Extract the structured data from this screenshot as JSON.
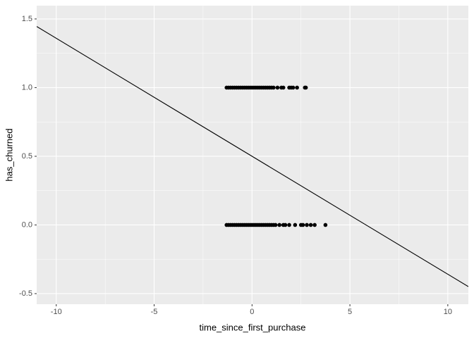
{
  "chart_data": {
    "type": "scatter",
    "xlabel": "time_since_first_purchase",
    "ylabel": "has_churned",
    "xlim": [
      -11,
      11.05
    ],
    "ylim": [
      -0.577,
      1.597
    ],
    "xticks": [
      -10,
      -5,
      0,
      5,
      10
    ],
    "yticks": [
      -0.5,
      {
        "value": 0,
        "label": "0.0"
      },
      0.5,
      {
        "value": 1,
        "label": "1.0"
      },
      1.5
    ],
    "xminor": [
      -7.5,
      -2.5,
      2.5,
      7.5
    ],
    "yminor": [
      -0.25,
      0.25,
      0.75,
      1.25
    ],
    "grid": true,
    "background": "#ebebeb",
    "point_color": "#000000",
    "points": {
      "x": [
        -1.3,
        -1.2,
        -1.1,
        -1,
        -0.9,
        -0.8,
        -0.7,
        -0.6,
        -0.5,
        -0.4,
        -0.3,
        -0.2,
        -0.1,
        0,
        0.1,
        0.2,
        0.3,
        0.4,
        0.5,
        0.6,
        0.7,
        0.8,
        0.9,
        1,
        1.1,
        1.3,
        1.5,
        1.6,
        1.9,
        2,
        2.1,
        2.3,
        2.7,
        2.75,
        -1.3,
        -1.2,
        -1.1,
        -1,
        -0.9,
        -0.8,
        -0.7,
        -0.6,
        -0.5,
        -0.4,
        -0.3,
        -0.2,
        -0.1,
        0,
        0.1,
        0.2,
        0.3,
        0.4,
        0.5,
        0.6,
        0.7,
        0.8,
        0.9,
        1,
        1.1,
        1.2,
        1.4,
        1.6,
        1.7,
        1.9,
        2.2,
        2.5,
        2.6,
        2.8,
        3,
        3.2,
        3.75
      ],
      "y": [
        1,
        1,
        1,
        1,
        1,
        1,
        1,
        1,
        1,
        1,
        1,
        1,
        1,
        1,
        1,
        1,
        1,
        1,
        1,
        1,
        1,
        1,
        1,
        1,
        1,
        1,
        1,
        1,
        1,
        1,
        1,
        1,
        1,
        1,
        0,
        0,
        0,
        0,
        0,
        0,
        0,
        0,
        0,
        0,
        0,
        0,
        0,
        0,
        0,
        0,
        0,
        0,
        0,
        0,
        0,
        0,
        0,
        0,
        0,
        0,
        0,
        0,
        0,
        0,
        0,
        0,
        0,
        0,
        0,
        0,
        0
      ]
    },
    "line": {
      "color": "#000000",
      "x": [
        -11,
        11.05
      ],
      "y": [
        1.445,
        -0.449
      ]
    }
  }
}
